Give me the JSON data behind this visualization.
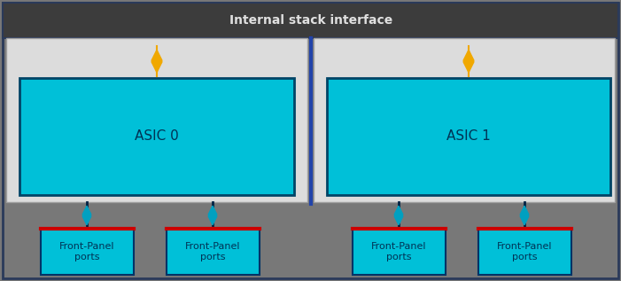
{
  "fig_width": 7.01,
  "fig_height": 3.17,
  "dpi": 100,
  "bg_outer": "#787878",
  "bg_header": "#3c3c3c",
  "bg_asic_panel": "#dcdcdc",
  "asic_box_fill": "#00c0d8",
  "asic_box_edge": "#004466",
  "fp_box_fill": "#00c0d8",
  "fp_box_edge_top": "#cc0000",
  "fp_box_edge_side": "#003366",
  "header_text_color": "#e0e0e0",
  "asic_text_color": "#003355",
  "fp_text_color": "#003355",
  "header_text": "Internal stack interface",
  "header_fontsize": 10,
  "asic_labels": [
    "ASIC 0",
    "ASIC 1"
  ],
  "fp_label": "Front-Panel\nports",
  "fp_fontsize": 8,
  "asic_fontsize": 11,
  "divider_color": "#2244aa",
  "orange_color": "#f0a800",
  "blue_arrow_color": "#00a0c0",
  "blue_arrow_line": "#002244",
  "outer_edge": "#2a3a5a",
  "panel_edge": "#a0a0a0"
}
